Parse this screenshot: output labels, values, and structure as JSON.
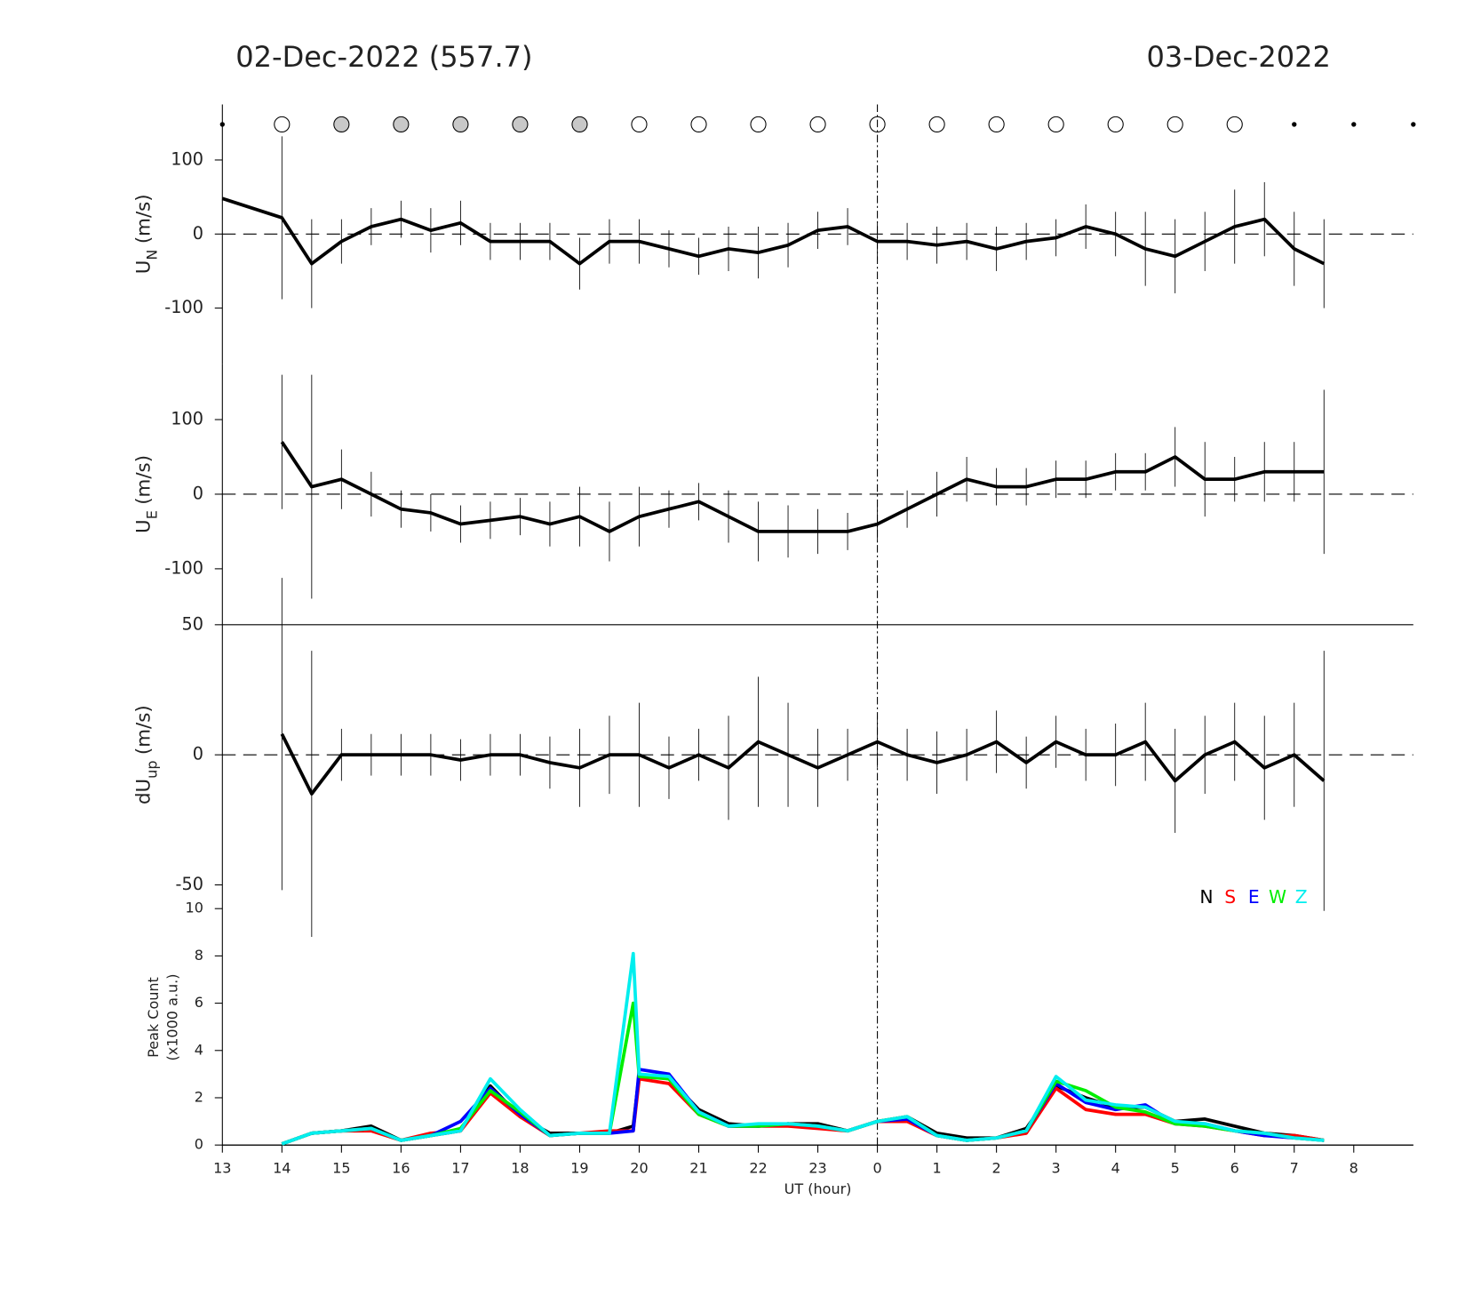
{
  "titles": {
    "left": "02-Dec-2022 (557.7)",
    "right": "03-Dec-2022"
  },
  "day_boundary": 24,
  "moon_phase": {
    "x": [
      13,
      14,
      15,
      16,
      17,
      18,
      19,
      20,
      21,
      22,
      23,
      24,
      25,
      26,
      27,
      28,
      29,
      30,
      31,
      32,
      33
    ],
    "kind": [
      "dot",
      "open",
      "grey",
      "grey",
      "grey",
      "grey",
      "grey",
      "open",
      "open",
      "open",
      "open",
      "open",
      "open",
      "open",
      "open",
      "open",
      "open",
      "open",
      "dot",
      "dot",
      "dot"
    ]
  },
  "chart_data": [
    {
      "type": "line",
      "ylabel": "U",
      "ylabel_sub": "N",
      "ylabel_unit": "(m/s)",
      "xlim": [
        13,
        33
      ],
      "ylim": [
        -175,
        175
      ],
      "yticks": [
        -100,
        0,
        100
      ],
      "hline": 0,
      "color": "#000000",
      "x": [
        13,
        14,
        14.5,
        15,
        15.5,
        16,
        16.5,
        17,
        17.5,
        18,
        18.5,
        19,
        19.5,
        20,
        20.5,
        21,
        21.5,
        22,
        22.5,
        23,
        23.5,
        24,
        24.5,
        25,
        25.5,
        26,
        26.5,
        27,
        27.5,
        28,
        28.5,
        29,
        29.5,
        30,
        30.5,
        31,
        31.5
      ],
      "values": [
        48,
        22,
        -40,
        -10,
        10,
        20,
        5,
        15,
        -10,
        -10,
        -10,
        -40,
        -10,
        -10,
        -20,
        -30,
        -20,
        -25,
        -15,
        5,
        10,
        -10,
        -10,
        -15,
        -10,
        -20,
        -10,
        -5,
        10,
        0,
        -20,
        -30,
        -10,
        10,
        20,
        -20,
        -40
      ],
      "errors": [
        null,
        110,
        60,
        30,
        25,
        25,
        30,
        30,
        25,
        25,
        25,
        35,
        30,
        30,
        25,
        25,
        30,
        35,
        30,
        25,
        25,
        25,
        25,
        25,
        25,
        30,
        25,
        25,
        30,
        30,
        50,
        50,
        40,
        50,
        50,
        50,
        60
      ]
    },
    {
      "type": "line",
      "ylabel": "U",
      "ylabel_sub": "E",
      "ylabel_unit": "(m/s)",
      "xlim": [
        13,
        33
      ],
      "ylim": [
        -175,
        175
      ],
      "yticks": [
        -100,
        0,
        100
      ],
      "hline": 0,
      "color": "#000000",
      "x": [
        14,
        14.5,
        15,
        15.5,
        16,
        16.5,
        17,
        17.5,
        18,
        18.5,
        19,
        19.5,
        20,
        20.5,
        21,
        21.5,
        22,
        22.5,
        23,
        23.5,
        24,
        24.5,
        25,
        25.5,
        26,
        26.5,
        27,
        27.5,
        28,
        28.5,
        29,
        29.5,
        30,
        30.5,
        31,
        31.5
      ],
      "values": [
        70,
        10,
        20,
        0,
        -20,
        -25,
        -40,
        -35,
        -30,
        -40,
        -30,
        -50,
        -30,
        -20,
        -10,
        -30,
        -50,
        -50,
        -50,
        -50,
        -40,
        -20,
        0,
        20,
        10,
        10,
        20,
        20,
        30,
        30,
        50,
        20,
        20,
        30,
        30,
        30
      ],
      "errors": [
        90,
        150,
        40,
        30,
        25,
        25,
        25,
        25,
        25,
        30,
        40,
        40,
        40,
        25,
        25,
        35,
        40,
        35,
        30,
        25,
        25,
        25,
        30,
        30,
        25,
        25,
        25,
        25,
        25,
        25,
        40,
        50,
        30,
        40,
        40,
        110
      ]
    },
    {
      "type": "line",
      "ylabel": "dU",
      "ylabel_sub": "up",
      "ylabel_unit": "(m/s)",
      "xlim": [
        13,
        33
      ],
      "ylim": [
        -50,
        50
      ],
      "yticks": [
        -50,
        0,
        50
      ],
      "hline": 0,
      "color": "#000000",
      "x": [
        14,
        14.5,
        15,
        15.5,
        16,
        16.5,
        17,
        17.5,
        18,
        18.5,
        19,
        19.5,
        20,
        20.5,
        21,
        21.5,
        22,
        22.5,
        23,
        23.5,
        24,
        24.5,
        25,
        25.5,
        26,
        26.5,
        27,
        27.5,
        28,
        28.5,
        29,
        29.5,
        30,
        30.5,
        31,
        31.5
      ],
      "values": [
        8,
        -15,
        0,
        0,
        0,
        0,
        -2,
        0,
        0,
        -3,
        -5,
        0,
        0,
        -5,
        0,
        -5,
        5,
        0,
        -5,
        0,
        5,
        0,
        -3,
        0,
        5,
        -3,
        5,
        0,
        0,
        5,
        -10,
        0,
        5,
        -5,
        0,
        -10
      ],
      "errors": [
        60,
        55,
        10,
        8,
        8,
        8,
        8,
        8,
        8,
        10,
        15,
        15,
        20,
        12,
        10,
        20,
        25,
        20,
        15,
        10,
        10,
        10,
        12,
        10,
        12,
        10,
        10,
        10,
        12,
        15,
        20,
        15,
        15,
        20,
        20,
        50
      ]
    },
    {
      "type": "line",
      "ylabel": "Peak Count",
      "ylabel2": "(x1000 a.u.)",
      "xlabel": "UT (hour)",
      "xlim": [
        13,
        33
      ],
      "ylim": [
        0,
        10
      ],
      "yticks": [
        0,
        2,
        4,
        6,
        8,
        10
      ],
      "hline": 0,
      "xticks": [
        13,
        14,
        15,
        16,
        17,
        18,
        19,
        20,
        21,
        22,
        23,
        {
          "value": 24,
          "label": "0"
        },
        {
          "value": 25,
          "label": "1"
        },
        {
          "value": 26,
          "label": "2"
        },
        {
          "value": 27,
          "label": "3"
        },
        {
          "value": 28,
          "label": "4"
        },
        {
          "value": 29,
          "label": "5"
        },
        {
          "value": 30,
          "label": "6"
        },
        {
          "value": 31,
          "label": "7"
        },
        {
          "value": 32,
          "label": "8"
        }
      ],
      "x": [
        14,
        14.5,
        15,
        15.5,
        16,
        16.5,
        17,
        17.5,
        18,
        18.5,
        19,
        19.5,
        19.9,
        20,
        20.5,
        21,
        21.5,
        22,
        22.5,
        23,
        23.5,
        24,
        24.5,
        25,
        25.5,
        26,
        26.5,
        27,
        27.5,
        28,
        28.5,
        29,
        29.5,
        30,
        30.5,
        31,
        31.5
      ],
      "series": [
        {
          "name": "N",
          "color": "#000000",
          "values": [
            0.05,
            0.5,
            0.6,
            0.8,
            0.2,
            0.4,
            0.6,
            2.5,
            1.2,
            0.5,
            0.5,
            0.5,
            0.8,
            3,
            2.8,
            1.5,
            0.9,
            0.8,
            0.9,
            0.9,
            0.6,
            1.0,
            1.2,
            0.5,
            0.3,
            0.3,
            0.7,
            2.5,
            2.0,
            1.6,
            1.6,
            1.0,
            1.1,
            0.8,
            0.5,
            0.4,
            0.2
          ]
        },
        {
          "name": "S",
          "color": "#ff0000",
          "values": [
            0.05,
            0.5,
            0.6,
            0.6,
            0.2,
            0.5,
            0.6,
            2.2,
            1.2,
            0.4,
            0.5,
            0.6,
            0.6,
            2.8,
            2.6,
            1.3,
            0.8,
            0.8,
            0.8,
            0.7,
            0.6,
            1.0,
            1.0,
            0.4,
            0.2,
            0.3,
            0.5,
            2.4,
            1.5,
            1.3,
            1.3,
            0.9,
            0.8,
            0.6,
            0.4,
            0.4,
            0.2
          ]
        },
        {
          "name": "E",
          "color": "#0000ff",
          "values": [
            0.05,
            0.5,
            0.6,
            0.7,
            0.2,
            0.4,
            1.0,
            2.4,
            1.3,
            0.4,
            0.5,
            0.5,
            0.6,
            3.2,
            3.0,
            1.4,
            0.8,
            0.8,
            0.9,
            0.8,
            0.6,
            1.0,
            1.1,
            0.4,
            0.2,
            0.3,
            0.6,
            2.6,
            1.8,
            1.5,
            1.7,
            0.9,
            0.9,
            0.6,
            0.4,
            0.3,
            0.2
          ]
        },
        {
          "name": "W",
          "color": "#00ee00",
          "values": [
            0.05,
            0.5,
            0.6,
            0.7,
            0.2,
            0.4,
            0.7,
            2.3,
            1.4,
            0.4,
            0.5,
            0.5,
            6.0,
            2.9,
            2.8,
            1.3,
            0.8,
            0.8,
            0.9,
            0.8,
            0.6,
            1.0,
            1.2,
            0.4,
            0.2,
            0.3,
            0.6,
            2.7,
            2.3,
            1.6,
            1.4,
            0.9,
            0.8,
            0.6,
            0.5,
            0.3,
            0.2
          ]
        },
        {
          "name": "Z",
          "color": "#00eeee",
          "values": [
            0.05,
            0.5,
            0.6,
            0.7,
            0.2,
            0.4,
            0.6,
            2.8,
            1.5,
            0.4,
            0.5,
            0.5,
            8.1,
            3.0,
            2.9,
            1.4,
            0.8,
            0.9,
            0.9,
            0.8,
            0.6,
            1.0,
            1.2,
            0.4,
            0.2,
            0.3,
            0.6,
            2.9,
            1.9,
            1.7,
            1.6,
            1.0,
            0.9,
            0.6,
            0.5,
            0.3,
            0.2
          ]
        }
      ]
    }
  ]
}
